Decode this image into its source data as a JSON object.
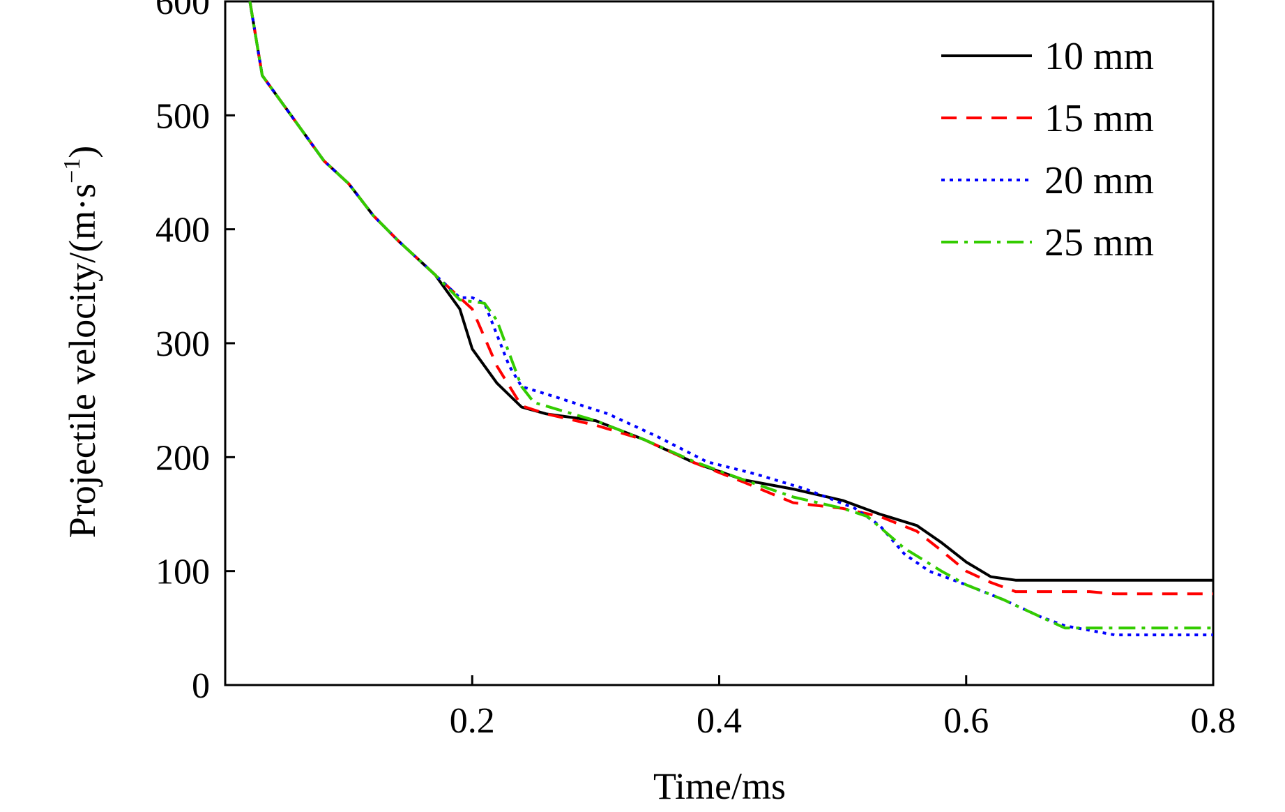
{
  "chart_data": {
    "type": "line",
    "title": "",
    "xlabel": "Time/ms",
    "ylabel_main": "Projectile velocity/(m·s",
    "ylabel_sup": "−1",
    "ylabel_close": ")",
    "xlim": [
      0,
      0.8
    ],
    "ylim": [
      0,
      600
    ],
    "x_ticks": [
      0.2,
      0.4,
      0.6,
      0.8
    ],
    "x_tick_labels": [
      "0.2",
      "0.4",
      "0.6",
      "0.8"
    ],
    "y_ticks": [
      0,
      100,
      200,
      300,
      400,
      500,
      600
    ],
    "y_tick_labels": [
      "0",
      "100",
      "200",
      "300",
      "400",
      "500",
      "600"
    ],
    "grid": false,
    "legend_position": "top-right",
    "series": [
      {
        "name": "10 mm",
        "color": "#000000",
        "dash": "solid",
        "points": [
          [
            0.02,
            600
          ],
          [
            0.03,
            535
          ],
          [
            0.05,
            505
          ],
          [
            0.08,
            460
          ],
          [
            0.1,
            440
          ],
          [
            0.12,
            412
          ],
          [
            0.14,
            390
          ],
          [
            0.17,
            360
          ],
          [
            0.19,
            330
          ],
          [
            0.2,
            295
          ],
          [
            0.22,
            265
          ],
          [
            0.24,
            244
          ],
          [
            0.26,
            238
          ],
          [
            0.3,
            232
          ],
          [
            0.34,
            215
          ],
          [
            0.38,
            195
          ],
          [
            0.42,
            180
          ],
          [
            0.46,
            172
          ],
          [
            0.5,
            162
          ],
          [
            0.53,
            150
          ],
          [
            0.56,
            140
          ],
          [
            0.58,
            125
          ],
          [
            0.6,
            108
          ],
          [
            0.62,
            95
          ],
          [
            0.64,
            92
          ],
          [
            0.8,
            92
          ]
        ]
      },
      {
        "name": "15 mm",
        "color": "#ff0000",
        "dash": "dashed",
        "points": [
          [
            0.02,
            600
          ],
          [
            0.03,
            535
          ],
          [
            0.05,
            505
          ],
          [
            0.08,
            460
          ],
          [
            0.1,
            440
          ],
          [
            0.12,
            412
          ],
          [
            0.14,
            390
          ],
          [
            0.17,
            360
          ],
          [
            0.19,
            340
          ],
          [
            0.2,
            330
          ],
          [
            0.22,
            280
          ],
          [
            0.24,
            245
          ],
          [
            0.26,
            238
          ],
          [
            0.3,
            228
          ],
          [
            0.34,
            215
          ],
          [
            0.38,
            195
          ],
          [
            0.42,
            178
          ],
          [
            0.46,
            160
          ],
          [
            0.5,
            155
          ],
          [
            0.53,
            148
          ],
          [
            0.56,
            135
          ],
          [
            0.58,
            118
          ],
          [
            0.6,
            100
          ],
          [
            0.62,
            90
          ],
          [
            0.64,
            82
          ],
          [
            0.7,
            82
          ],
          [
            0.72,
            80
          ],
          [
            0.8,
            80
          ]
        ]
      },
      {
        "name": "20 mm",
        "color": "#0000ff",
        "dash": "dotted",
        "points": [
          [
            0.02,
            600
          ],
          [
            0.03,
            535
          ],
          [
            0.05,
            505
          ],
          [
            0.08,
            460
          ],
          [
            0.1,
            440
          ],
          [
            0.12,
            412
          ],
          [
            0.14,
            390
          ],
          [
            0.17,
            360
          ],
          [
            0.19,
            340
          ],
          [
            0.2,
            340
          ],
          [
            0.21,
            335
          ],
          [
            0.23,
            280
          ],
          [
            0.24,
            262
          ],
          [
            0.27,
            252
          ],
          [
            0.31,
            238
          ],
          [
            0.35,
            218
          ],
          [
            0.39,
            196
          ],
          [
            0.43,
            185
          ],
          [
            0.47,
            172
          ],
          [
            0.51,
            155
          ],
          [
            0.53,
            140
          ],
          [
            0.55,
            115
          ],
          [
            0.57,
            100
          ],
          [
            0.6,
            88
          ],
          [
            0.63,
            75
          ],
          [
            0.66,
            60
          ],
          [
            0.68,
            52
          ],
          [
            0.7,
            48
          ],
          [
            0.72,
            44
          ],
          [
            0.8,
            44
          ]
        ]
      },
      {
        "name": "25 mm",
        "color": "#33cc00",
        "dash": "dashdot",
        "points": [
          [
            0.02,
            600
          ],
          [
            0.03,
            535
          ],
          [
            0.05,
            505
          ],
          [
            0.08,
            460
          ],
          [
            0.1,
            440
          ],
          [
            0.12,
            412
          ],
          [
            0.14,
            390
          ],
          [
            0.17,
            360
          ],
          [
            0.19,
            338
          ],
          [
            0.21,
            335
          ],
          [
            0.22,
            320
          ],
          [
            0.24,
            262
          ],
          [
            0.25,
            248
          ],
          [
            0.3,
            232
          ],
          [
            0.34,
            215
          ],
          [
            0.38,
            196
          ],
          [
            0.42,
            180
          ],
          [
            0.46,
            165
          ],
          [
            0.5,
            155
          ],
          [
            0.52,
            148
          ],
          [
            0.55,
            120
          ],
          [
            0.58,
            100
          ],
          [
            0.6,
            88
          ],
          [
            0.63,
            75
          ],
          [
            0.66,
            60
          ],
          [
            0.68,
            50
          ],
          [
            0.7,
            50
          ],
          [
            0.8,
            50
          ]
        ]
      }
    ]
  }
}
